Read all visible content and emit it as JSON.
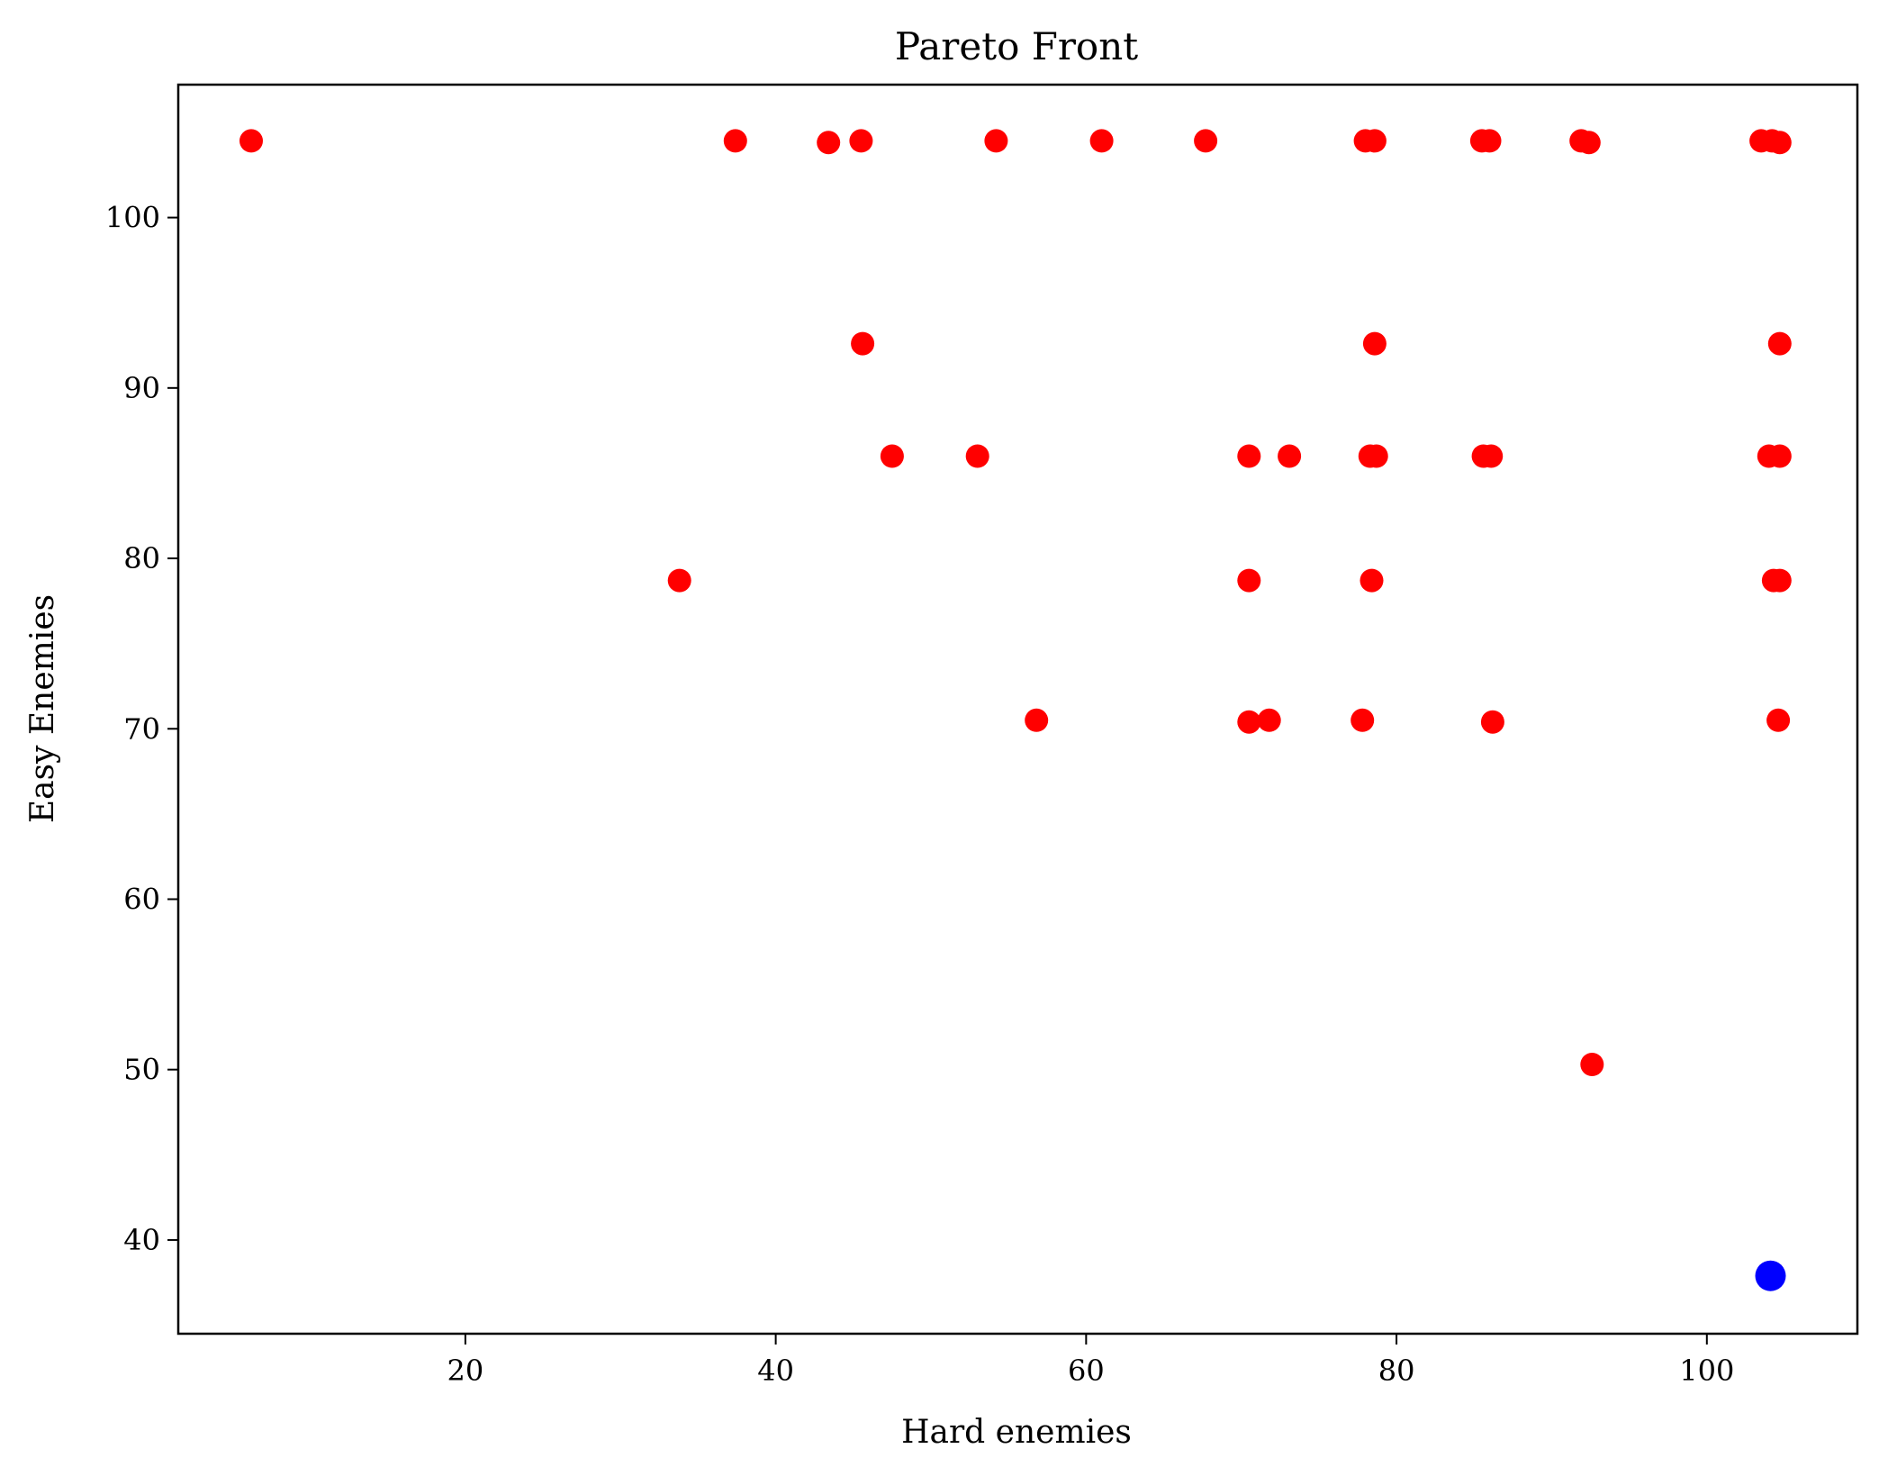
{
  "chart_data": {
    "type": "scatter",
    "title": "Pareto Front",
    "xlabel": "Hard enemies",
    "ylabel": "Easy Enemies",
    "xlim": [
      1.5,
      109.7
    ],
    "ylim": [
      34.5,
      107.8
    ],
    "xticks": [
      20,
      40,
      60,
      80,
      100
    ],
    "yticks": [
      40,
      50,
      60,
      70,
      80,
      90,
      100
    ],
    "grid": false,
    "legend": "none",
    "series": [
      {
        "color": "#ff0000",
        "points": [
          [
            6.2,
            104.5
          ],
          [
            37.4,
            104.5
          ],
          [
            43.4,
            104.4
          ],
          [
            45.5,
            104.5
          ],
          [
            54.2,
            104.5
          ],
          [
            61.0,
            104.5
          ],
          [
            67.7,
            104.5
          ],
          [
            78.0,
            104.5
          ],
          [
            78.6,
            104.5
          ],
          [
            85.5,
            104.5
          ],
          [
            86.0,
            104.5
          ],
          [
            91.9,
            104.5
          ],
          [
            92.4,
            104.4
          ],
          [
            103.5,
            104.5
          ],
          [
            104.2,
            104.5
          ],
          [
            104.7,
            104.4
          ],
          [
            45.6,
            92.6
          ],
          [
            78.6,
            92.6
          ],
          [
            104.7,
            92.6
          ],
          [
            47.5,
            86.0
          ],
          [
            53.0,
            86.0
          ],
          [
            70.5,
            86.0
          ],
          [
            73.1,
            86.0
          ],
          [
            78.3,
            86.0
          ],
          [
            78.7,
            86.0
          ],
          [
            85.6,
            86.0
          ],
          [
            86.1,
            86.0
          ],
          [
            104.0,
            86.0
          ],
          [
            104.7,
            86.0
          ],
          [
            33.8,
            78.7
          ],
          [
            70.5,
            78.7
          ],
          [
            78.4,
            78.7
          ],
          [
            104.3,
            78.7
          ],
          [
            104.7,
            78.7
          ],
          [
            56.8,
            70.5
          ],
          [
            70.5,
            70.4
          ],
          [
            71.8,
            70.5
          ],
          [
            77.8,
            70.5
          ],
          [
            86.2,
            70.4
          ],
          [
            104.6,
            70.5
          ],
          [
            92.6,
            50.3
          ]
        ]
      },
      {
        "color": "#0000ff",
        "points": [
          [
            104.1,
            37.9
          ]
        ]
      }
    ]
  }
}
